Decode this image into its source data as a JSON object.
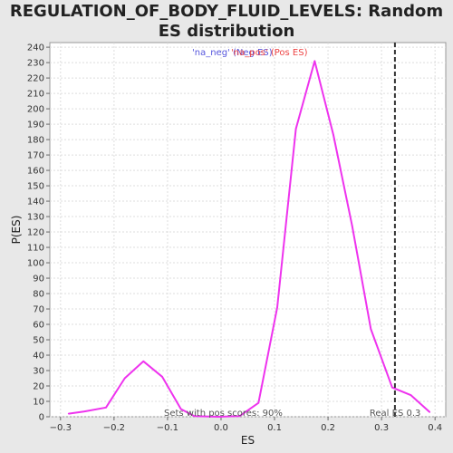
{
  "chart_data": {
    "type": "line",
    "title": "REGULATION_OF_BODY_FLUID_LEVELS: Random ES distribution",
    "xlabel": "ES",
    "ylabel": "P(ES)",
    "xlim": [
      -0.32,
      0.42
    ],
    "ylim": [
      0,
      243
    ],
    "xticks": [
      -0.3,
      -0.2,
      -0.1,
      0.0,
      0.1,
      0.2,
      0.3,
      0.4
    ],
    "xtick_labels": [
      "−0.3",
      "−0.2",
      "−0.1",
      "0.0",
      "0.1",
      "0.2",
      "0.3",
      "0.4"
    ],
    "yticks": [
      0,
      10,
      20,
      30,
      40,
      50,
      60,
      70,
      80,
      90,
      100,
      110,
      120,
      130,
      140,
      150,
      160,
      170,
      180,
      190,
      200,
      210,
      220,
      230,
      240
    ],
    "grid": true,
    "series": [
      {
        "color": "#ee33ee",
        "x": [
          -0.285,
          -0.255,
          -0.215,
          -0.18,
          -0.145,
          -0.11,
          -0.075,
          -0.05,
          -0.005,
          0.035,
          0.07,
          0.105,
          0.14,
          0.175,
          0.21,
          0.245,
          0.28,
          0.32,
          0.355,
          0.39
        ],
        "y": [
          2,
          3.5,
          6,
          25,
          36,
          26,
          5,
          0.5,
          0,
          0.5,
          9,
          71,
          187,
          231,
          183,
          124,
          57,
          19,
          14,
          3
        ]
      }
    ],
    "real_es_marker": {
      "x": 0.325,
      "label": "Real ES 0.3"
    },
    "legend": {
      "neg_label": "'na_neg' (Neg ES)",
      "pos_label": "'na_pos' (Pos ES)",
      "neg_color": "#5555dd",
      "pos_color": "#ee4444"
    },
    "annotation": "Sets with pos scores: 90%"
  }
}
